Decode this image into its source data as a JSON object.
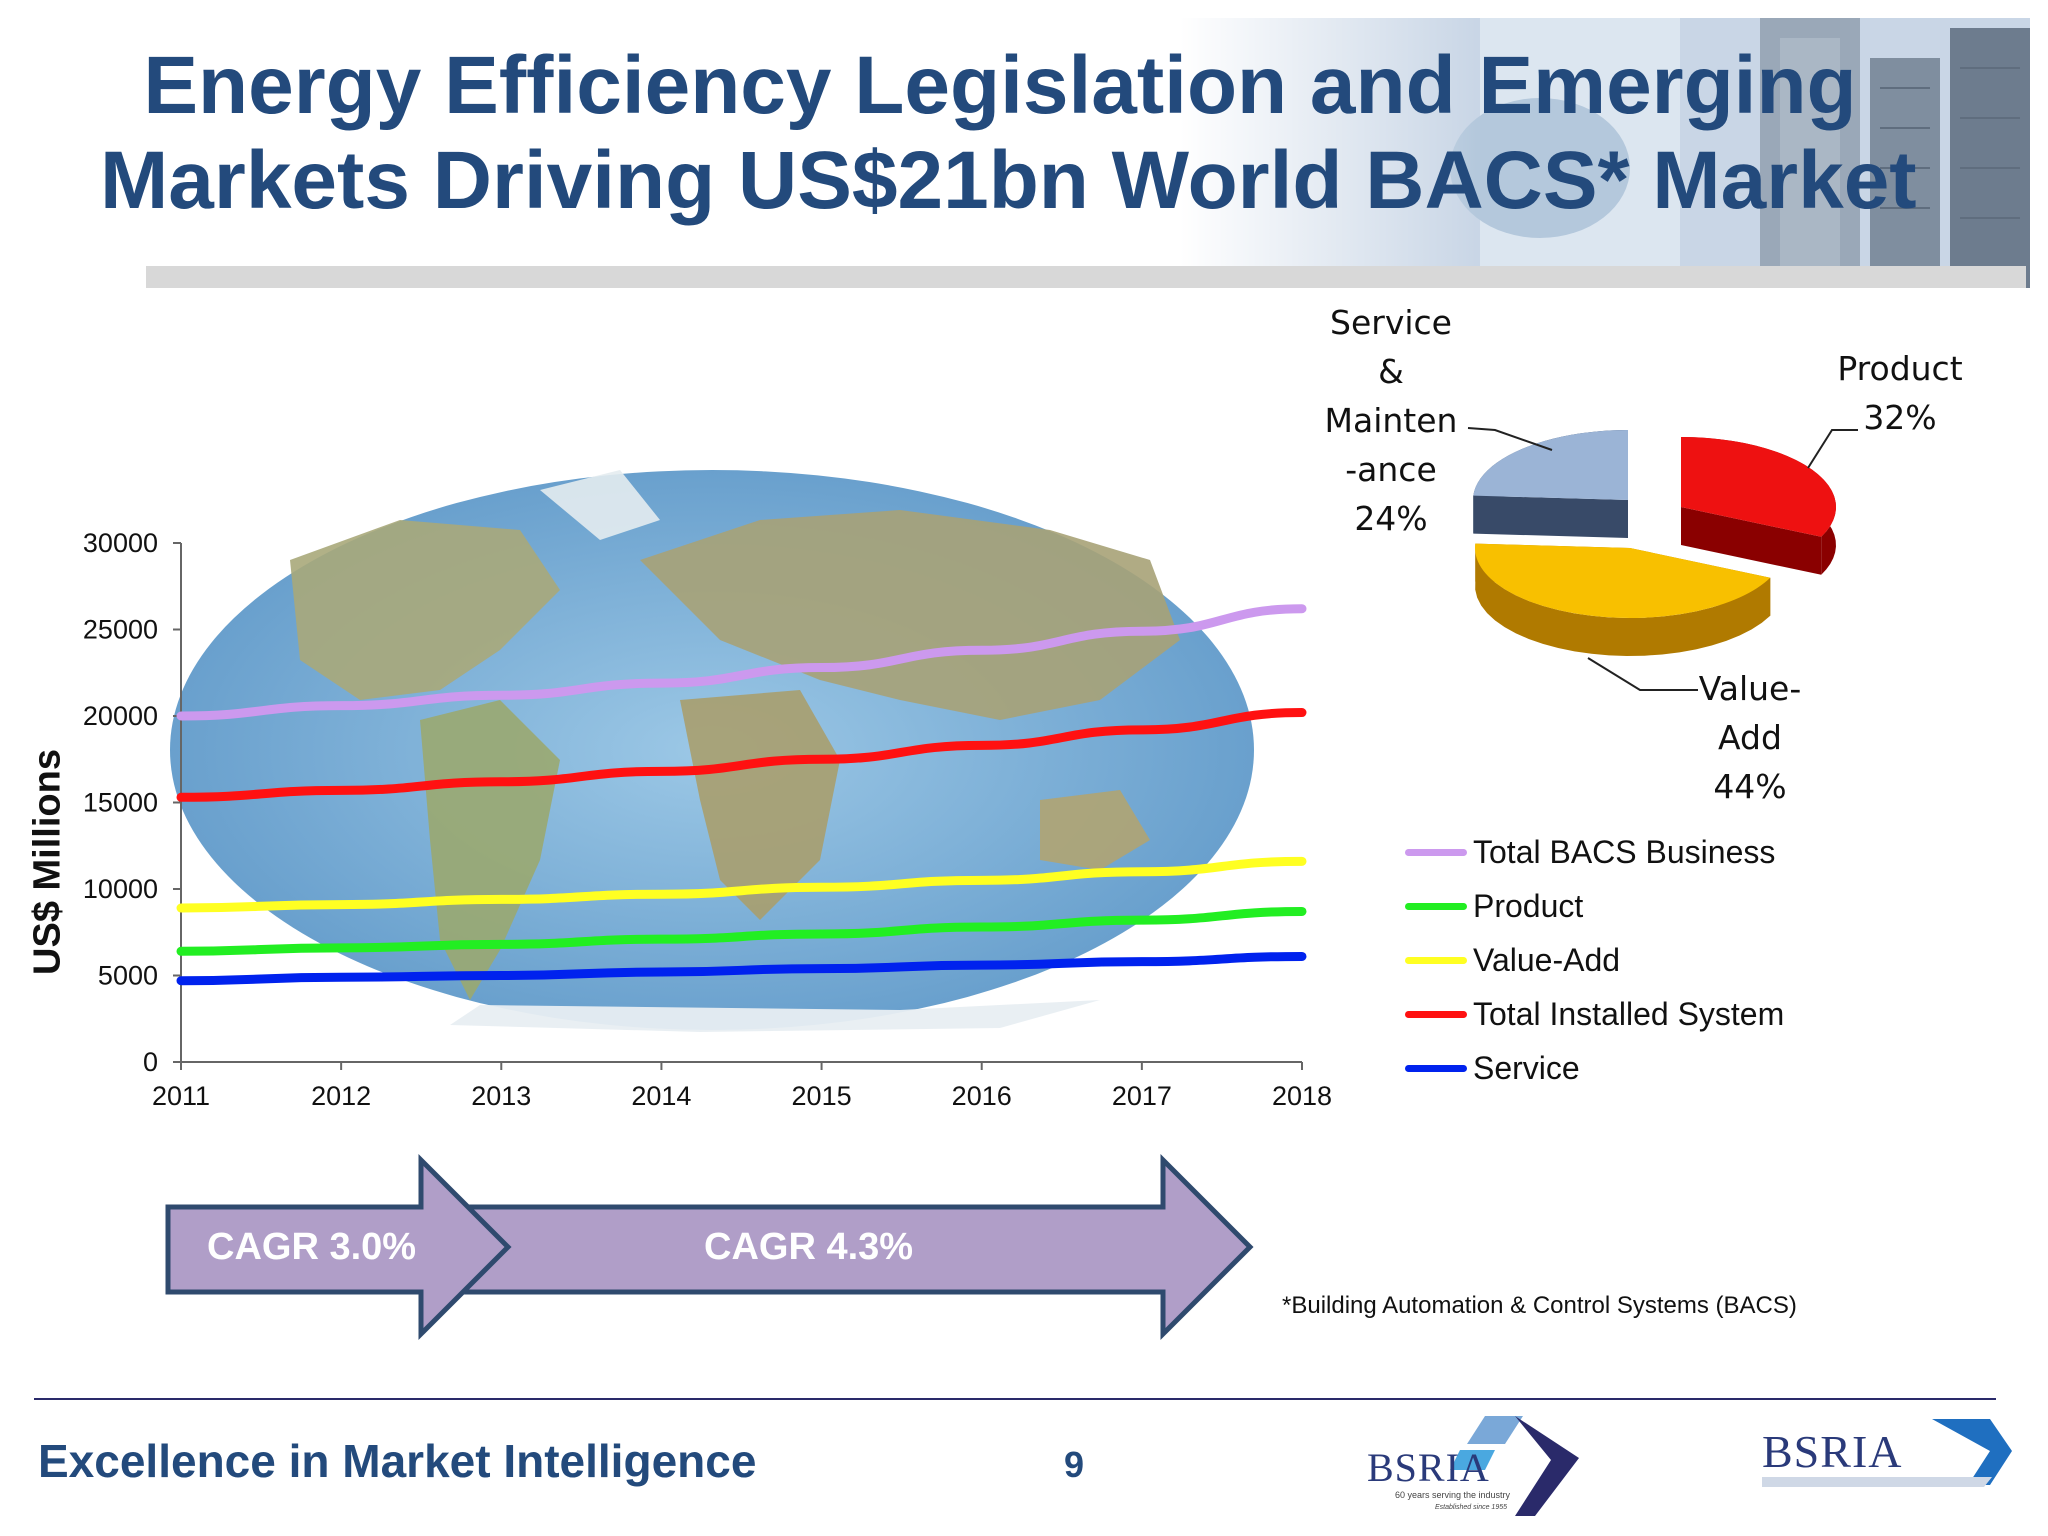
{
  "slide": {
    "title_line1": "Energy Efficiency Legislation and Emerging",
    "title_line2": "Markets Driving US$21bn World BACS* Market",
    "footnote": "*Building Automation & Control Systems (BACS)",
    "tagline": "Excellence in Market Intelligence",
    "page_number": "9",
    "logo1_text": "BSRIA",
    "logo1_sub1": "60 years serving the industry",
    "logo1_sub2": "Established since 1955",
    "logo2_text": "BSRIA"
  },
  "chart_data": [
    {
      "type": "line",
      "x": [
        2011,
        2012,
        2013,
        2014,
        2015,
        2016,
        2017,
        2018
      ],
      "xticks": [
        "2011",
        "2012",
        "2013",
        "2014",
        "2015",
        "2016",
        "2017",
        "2018"
      ],
      "yticks": [
        "0",
        "5000",
        "10000",
        "15000",
        "20000",
        "25000",
        "30000"
      ],
      "ylabel": "US$ Millions",
      "xlim": [
        2011,
        2018
      ],
      "ylim": [
        0,
        30000
      ],
      "grid": false,
      "legend_position": "right",
      "series": [
        {
          "name": "Total BACS Business",
          "color": "#cc99ee",
          "values": [
            20000,
            20600,
            21200,
            21900,
            22800,
            23800,
            24900,
            26200
          ]
        },
        {
          "name": "Product",
          "color": "#22ee22",
          "values": [
            6400,
            6600,
            6800,
            7100,
            7400,
            7800,
            8200,
            8700
          ]
        },
        {
          "name": "Value-Add",
          "color": "#ffff22",
          "values": [
            8900,
            9100,
            9400,
            9700,
            10100,
            10500,
            11000,
            11600
          ]
        },
        {
          "name": "Total Installed System",
          "color": "#ff1111",
          "values": [
            15300,
            15700,
            16200,
            16800,
            17500,
            18300,
            19200,
            20200
          ]
        },
        {
          "name": "Service",
          "color": "#0022ee",
          "values": [
            4700,
            4900,
            5000,
            5200,
            5400,
            5600,
            5800,
            6100
          ]
        }
      ]
    },
    {
      "type": "pie",
      "slices": [
        {
          "label": "Product",
          "value": 32,
          "value_label": "32%",
          "color": "#ee1111",
          "dark": "#8a0000"
        },
        {
          "label": "Value-Add",
          "value": 44,
          "value_label": "44%",
          "color": "#f8c000",
          "dark": "#b07a00"
        },
        {
          "label": "Service & Mainten -ance",
          "value": 24,
          "value_label": "24%",
          "color": "#9bb4d6",
          "dark": "#384a68"
        }
      ],
      "label_lines": {
        "service": [
          "Service",
          "&",
          "Mainten",
          "-ance",
          "24%"
        ],
        "product": [
          "Product",
          "32%"
        ],
        "valueadd": [
          "Value-",
          "Add",
          "44%"
        ]
      }
    }
  ],
  "cagr": {
    "first": "CAGR 3.0%",
    "second": "CAGR 4.3%",
    "color": "#b09ec8"
  }
}
